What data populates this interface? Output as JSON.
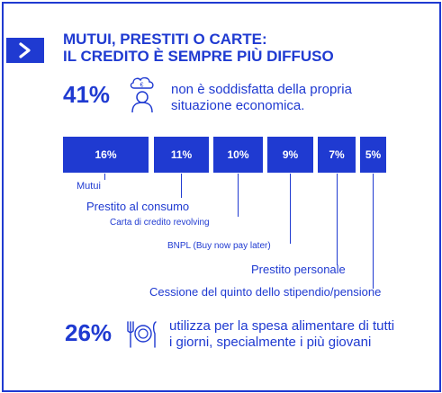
{
  "colors": {
    "accent": "#1f3ad1",
    "background": "#ffffff",
    "bar_text": "#ffffff"
  },
  "header": {
    "nav_icon": "chevron-right-icon",
    "title_line1": "MUTUI, PRESTITI O CARTE:",
    "title_line2": "IL CREDITO È SEMPRE PIÙ DIFFUSO"
  },
  "stat1": {
    "value": "41%",
    "icon": "worried-person-euro-icon",
    "text_line1": "non è soddisfatta della propria",
    "text_line2": "situazione economica."
  },
  "breakdown": {
    "items": [
      {
        "value": "16%",
        "label": "Mutui"
      },
      {
        "value": "11%",
        "label": "Prestito al consumo"
      },
      {
        "value": "10%",
        "label": "Carta di credito revolving"
      },
      {
        "value": "9%",
        "label": "BNPL (Buy now pay later)"
      },
      {
        "value": "7%",
        "label": "Prestito personale"
      },
      {
        "value": "5%",
        "label": "Cessione del quinto dello stipendio/pensione"
      }
    ]
  },
  "stat2": {
    "value": "26%",
    "icon": "plate-cutlery-icon",
    "text_line1": "utilizza per la spesa alimentare di tutti",
    "text_line2": "i giorni, specialmente i più giovani"
  }
}
